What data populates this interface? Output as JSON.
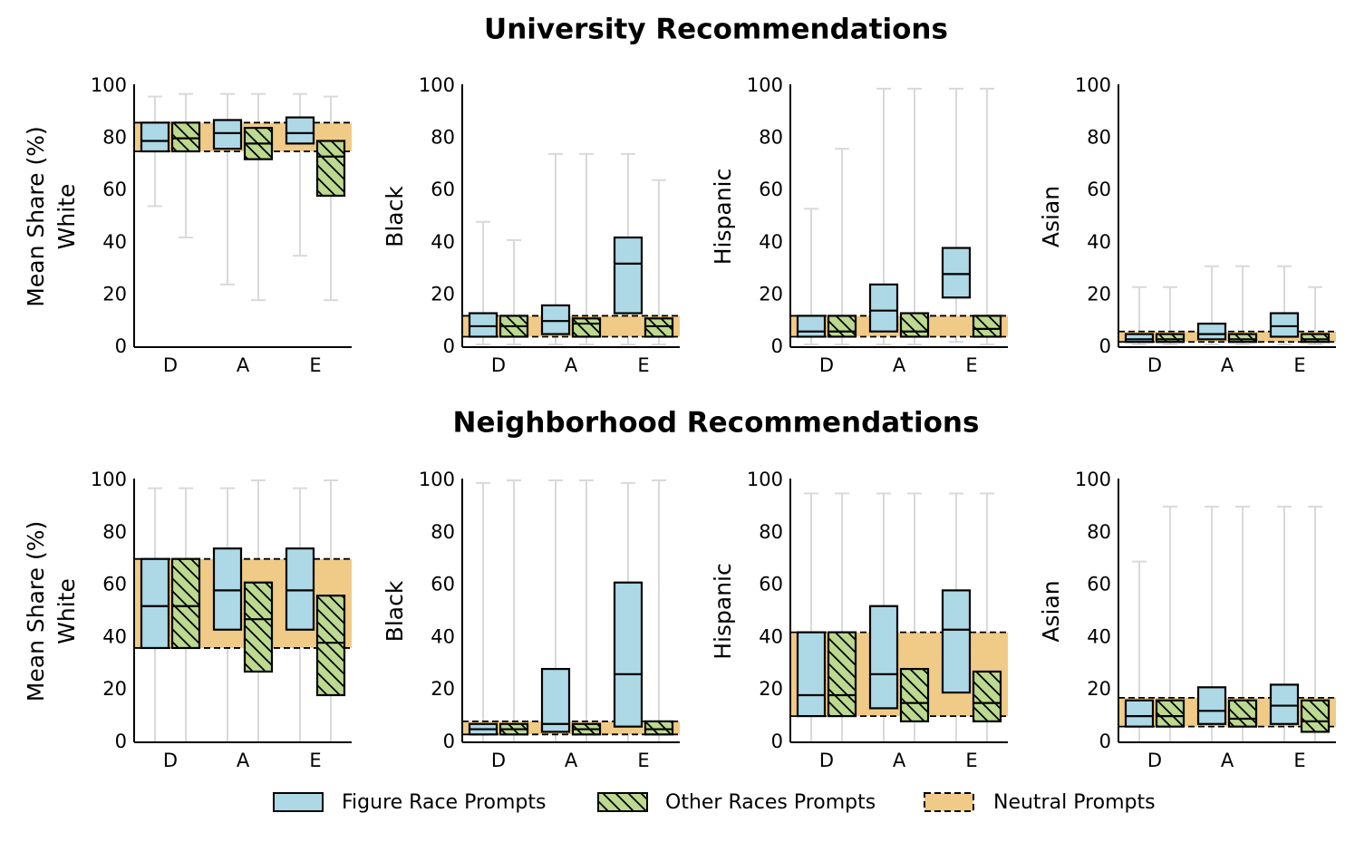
{
  "colors": {
    "figure_fill": "#add8e6",
    "other_fill": "#bcd98f",
    "neutral_fill": "#f0ca87",
    "whisker": "#d9d9d9",
    "edge": "#000000"
  },
  "legend": [
    {
      "key": "figure",
      "label": "Figure Race Prompts"
    },
    {
      "key": "other",
      "label": "Other Races Prompts"
    },
    {
      "key": "neutral",
      "label": "Neutral Prompts"
    }
  ],
  "chart_data": [
    {
      "type": "box",
      "title": "University Recommendations",
      "panels": [
        {
          "ylabel_lines": [
            "Mean Share (%)",
            "White"
          ],
          "ylim": [
            0,
            100
          ],
          "yticks": [
            0,
            20,
            40,
            60,
            80,
            100
          ],
          "categories": [
            "D",
            "A",
            "E"
          ],
          "neutral": [
            75,
            86
          ],
          "figure": [
            {
              "whisker": [
                54,
                96
              ],
              "box": [
                75,
                86
              ],
              "median": 79
            },
            {
              "whisker": [
                24,
                97
              ],
              "box": [
                76,
                87
              ],
              "median": 82
            },
            {
              "whisker": [
                35,
                97
              ],
              "box": [
                78,
                88
              ],
              "median": 82
            }
          ],
          "other": [
            {
              "whisker": [
                42,
                97
              ],
              "box": [
                75,
                86
              ],
              "median": 80
            },
            {
              "whisker": [
                18,
                97
              ],
              "box": [
                72,
                84
              ],
              "median": 78
            },
            {
              "whisker": [
                18,
                96
              ],
              "box": [
                58,
                79
              ],
              "median": 73
            }
          ]
        },
        {
          "ylabel_lines": [
            "Black"
          ],
          "ylim": [
            0,
            100
          ],
          "yticks": [
            0,
            20,
            40,
            60,
            80,
            100
          ],
          "categories": [
            "D",
            "A",
            "E"
          ],
          "neutral": [
            4,
            12
          ],
          "figure": [
            {
              "whisker": [
                1,
                48
              ],
              "box": [
                4,
                13
              ],
              "median": 8
            },
            {
              "whisker": [
                1,
                74
              ],
              "box": [
                5,
                16
              ],
              "median": 10
            },
            {
              "whisker": [
                1,
                74
              ],
              "box": [
                13,
                42
              ],
              "median": 32
            }
          ],
          "other": [
            {
              "whisker": [
                1,
                41
              ],
              "box": [
                4,
                12
              ],
              "median": 8
            },
            {
              "whisker": [
                1,
                74
              ],
              "box": [
                4,
                11
              ],
              "median": 9
            },
            {
              "whisker": [
                1,
                64
              ],
              "box": [
                4,
                11
              ],
              "median": 8
            }
          ]
        },
        {
          "ylabel_lines": [
            "Hispanic"
          ],
          "ylim": [
            0,
            100
          ],
          "yticks": [
            0,
            20,
            40,
            60,
            80,
            100
          ],
          "categories": [
            "D",
            "A",
            "E"
          ],
          "neutral": [
            4,
            12
          ],
          "figure": [
            {
              "whisker": [
                1,
                53
              ],
              "box": [
                4,
                12
              ],
              "median": 6
            },
            {
              "whisker": [
                1,
                99
              ],
              "box": [
                6,
                24
              ],
              "median": 14
            },
            {
              "whisker": [
                2,
                99
              ],
              "box": [
                19,
                38
              ],
              "median": 28
            }
          ],
          "other": [
            {
              "whisker": [
                1,
                76
              ],
              "box": [
                4,
                12
              ],
              "median": 6
            },
            {
              "whisker": [
                1,
                99
              ],
              "box": [
                4,
                13
              ],
              "median": 6
            },
            {
              "whisker": [
                1,
                99
              ],
              "box": [
                4,
                12
              ],
              "median": 7
            }
          ]
        },
        {
          "ylabel_lines": [
            "Asian"
          ],
          "ylim": [
            0,
            100
          ],
          "yticks": [
            0,
            20,
            40,
            60,
            80,
            100
          ],
          "categories": [
            "D",
            "A",
            "E"
          ],
          "neutral": [
            2,
            6
          ],
          "figure": [
            {
              "whisker": [
                1,
                23
              ],
              "box": [
                2,
                5
              ],
              "median": 3
            },
            {
              "whisker": [
                1,
                31
              ],
              "box": [
                3,
                9
              ],
              "median": 5
            },
            {
              "whisker": [
                1,
                31
              ],
              "box": [
                4,
                13
              ],
              "median": 8
            }
          ],
          "other": [
            {
              "whisker": [
                1,
                23
              ],
              "box": [
                2,
                5
              ],
              "median": 3
            },
            {
              "whisker": [
                1,
                31
              ],
              "box": [
                2,
                5
              ],
              "median": 3
            },
            {
              "whisker": [
                1,
                23
              ],
              "box": [
                2,
                5
              ],
              "median": 3
            }
          ]
        }
      ]
    },
    {
      "type": "box",
      "title": "Neighborhood Recommendations",
      "panels": [
        {
          "ylabel_lines": [
            "Mean Share (%)",
            "White"
          ],
          "ylim": [
            0,
            100
          ],
          "yticks": [
            0,
            20,
            40,
            60,
            80,
            100
          ],
          "categories": [
            "D",
            "A",
            "E"
          ],
          "neutral": [
            36,
            70
          ],
          "figure": [
            {
              "whisker": [
                0,
                97
              ],
              "box": [
                36,
                70
              ],
              "median": 52
            },
            {
              "whisker": [
                0,
                97
              ],
              "box": [
                43,
                74
              ],
              "median": 58
            },
            {
              "whisker": [
                0,
                97
              ],
              "box": [
                43,
                74
              ],
              "median": 58
            }
          ],
          "other": [
            {
              "whisker": [
                0,
                97
              ],
              "box": [
                36,
                70
              ],
              "median": 52
            },
            {
              "whisker": [
                0,
                100
              ],
              "box": [
                27,
                61
              ],
              "median": 47
            },
            {
              "whisker": [
                0,
                100
              ],
              "box": [
                18,
                56
              ],
              "median": 38
            }
          ]
        },
        {
          "ylabel_lines": [
            "Black"
          ],
          "ylim": [
            0,
            100
          ],
          "yticks": [
            0,
            20,
            40,
            60,
            80,
            100
          ],
          "categories": [
            "D",
            "A",
            "E"
          ],
          "neutral": [
            3,
            8
          ],
          "figure": [
            {
              "whisker": [
                0,
                99
              ],
              "box": [
                3,
                7
              ],
              "median": 5
            },
            {
              "whisker": [
                0,
                100
              ],
              "box": [
                4,
                28
              ],
              "median": 7
            },
            {
              "whisker": [
                0,
                99
              ],
              "box": [
                6,
                61
              ],
              "median": 26
            }
          ],
          "other": [
            {
              "whisker": [
                0,
                100
              ],
              "box": [
                3,
                7
              ],
              "median": 5
            },
            {
              "whisker": [
                0,
                100
              ],
              "box": [
                3,
                7
              ],
              "median": 5
            },
            {
              "whisker": [
                0,
                100
              ],
              "box": [
                3,
                8
              ],
              "median": 5
            }
          ]
        },
        {
          "ylabel_lines": [
            "Hispanic"
          ],
          "ylim": [
            0,
            100
          ],
          "yticks": [
            0,
            20,
            40,
            60,
            80,
            100
          ],
          "categories": [
            "D",
            "A",
            "E"
          ],
          "neutral": [
            10,
            42
          ],
          "figure": [
            {
              "whisker": [
                0,
                95
              ],
              "box": [
                10,
                42
              ],
              "median": 18
            },
            {
              "whisker": [
                0,
                95
              ],
              "box": [
                13,
                52
              ],
              "median": 26
            },
            {
              "whisker": [
                0,
                95
              ],
              "box": [
                19,
                58
              ],
              "median": 43
            }
          ],
          "other": [
            {
              "whisker": [
                0,
                95
              ],
              "box": [
                10,
                42
              ],
              "median": 18
            },
            {
              "whisker": [
                0,
                95
              ],
              "box": [
                8,
                28
              ],
              "median": 15
            },
            {
              "whisker": [
                0,
                95
              ],
              "box": [
                8,
                27
              ],
              "median": 15
            }
          ]
        },
        {
          "ylabel_lines": [
            "Asian"
          ],
          "ylim": [
            0,
            100
          ],
          "yticks": [
            0,
            20,
            40,
            60,
            80,
            100
          ],
          "categories": [
            "D",
            "A",
            "E"
          ],
          "neutral": [
            6,
            17
          ],
          "figure": [
            {
              "whisker": [
                0,
                69
              ],
              "box": [
                6,
                16
              ],
              "median": 10
            },
            {
              "whisker": [
                0,
                90
              ],
              "box": [
                7,
                21
              ],
              "median": 12
            },
            {
              "whisker": [
                0,
                90
              ],
              "box": [
                7,
                22
              ],
              "median": 14
            }
          ],
          "other": [
            {
              "whisker": [
                0,
                90
              ],
              "box": [
                6,
                16
              ],
              "median": 10
            },
            {
              "whisker": [
                0,
                90
              ],
              "box": [
                6,
                16
              ],
              "median": 9
            },
            {
              "whisker": [
                0,
                90
              ],
              "box": [
                4,
                16
              ],
              "median": 8
            }
          ]
        }
      ]
    }
  ]
}
